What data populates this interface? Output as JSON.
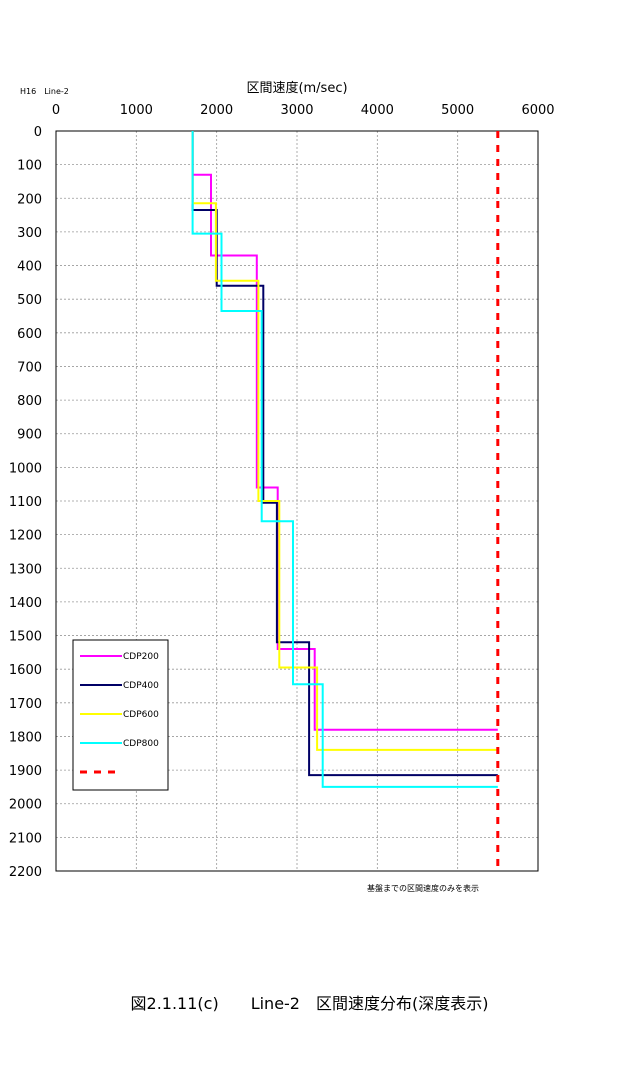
{
  "chart_data": {
    "type": "line",
    "line_label": "H16　Line-2",
    "title": "区間速度(m/sec)",
    "note": "基盤までの区間速度のみを表示",
    "x_axis": {
      "position": "top",
      "ticks": [
        0,
        1000,
        2000,
        3000,
        4000,
        5000,
        6000
      ],
      "range": [
        0,
        6000
      ]
    },
    "y_axis": {
      "inverted": true,
      "ticks": [
        0,
        100,
        200,
        300,
        400,
        500,
        600,
        700,
        800,
        900,
        1000,
        1100,
        1200,
        1300,
        1400,
        1500,
        1600,
        1700,
        1800,
        1900,
        2000,
        2100,
        2200
      ],
      "range": [
        0,
        2200
      ]
    },
    "grid": true,
    "legend_position": "lower-left",
    "series": [
      {
        "name": "CDP200",
        "color": "#ff00ff",
        "points": [
          [
            1700,
            0
          ],
          [
            1700,
            130
          ],
          [
            1930,
            130
          ],
          [
            1930,
            370
          ],
          [
            2500,
            370
          ],
          [
            2500,
            1060
          ],
          [
            2760,
            1060
          ],
          [
            2760,
            1540
          ],
          [
            3220,
            1540
          ],
          [
            3220,
            1780
          ],
          [
            5500,
            1780
          ]
        ]
      },
      {
        "name": "CDP400",
        "color": "#000066",
        "points": [
          [
            1700,
            0
          ],
          [
            1700,
            235
          ],
          [
            2000,
            235
          ],
          [
            2000,
            460
          ],
          [
            2580,
            460
          ],
          [
            2580,
            1105
          ],
          [
            2750,
            1105
          ],
          [
            2750,
            1520
          ],
          [
            3150,
            1520
          ],
          [
            3150,
            1915
          ],
          [
            5500,
            1915
          ]
        ]
      },
      {
        "name": "CDP600",
        "color": "#ffff00",
        "points": [
          [
            1700,
            0
          ],
          [
            1700,
            215
          ],
          [
            1990,
            215
          ],
          [
            1990,
            445
          ],
          [
            2520,
            445
          ],
          [
            2520,
            1100
          ],
          [
            2780,
            1100
          ],
          [
            2780,
            1595
          ],
          [
            3250,
            1595
          ],
          [
            3250,
            1840
          ],
          [
            5500,
            1840
          ]
        ]
      },
      {
        "name": "CDP800",
        "color": "#00ffff",
        "points": [
          [
            1700,
            0
          ],
          [
            1700,
            305
          ],
          [
            2060,
            305
          ],
          [
            2060,
            535
          ],
          [
            2560,
            535
          ],
          [
            2560,
            1160
          ],
          [
            2950,
            1160
          ],
          [
            2950,
            1645
          ],
          [
            3320,
            1645
          ],
          [
            3320,
            1950
          ],
          [
            5500,
            1950
          ]
        ]
      },
      {
        "name": "",
        "color": "#ff0000",
        "dashed": true,
        "points": [
          [
            5500,
            0
          ],
          [
            5500,
            2200
          ]
        ]
      }
    ]
  },
  "caption": "図2.1.11(c)　　Line-2　区間速度分布(深度表示)"
}
